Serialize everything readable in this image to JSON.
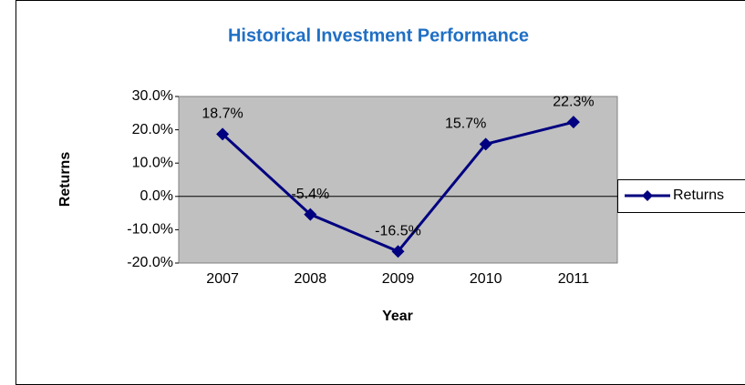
{
  "chart_data": {
    "type": "line",
    "title": "Historical Investment Performance",
    "x_label": "Year",
    "y_label": "Returns",
    "categories": [
      "2007",
      "2008",
      "2009",
      "2010",
      "2011"
    ],
    "series": [
      {
        "name": "Returns",
        "color": "#000080",
        "marker": "diamond",
        "values": [
          18.7,
          -5.4,
          -16.5,
          15.7,
          22.3
        ],
        "value_labels": [
          "18.7%",
          "-5.4%",
          "-16.5%",
          "15.7%",
          "22.3%"
        ]
      }
    ],
    "ylim": [
      -20,
      30
    ],
    "yticks": [
      {
        "value": -20,
        "label": "-20.0%"
      },
      {
        "value": -10,
        "label": "-10.0%"
      },
      {
        "value": 0,
        "label": "0.0%"
      },
      {
        "value": 10,
        "label": "10.0%"
      },
      {
        "value": 20,
        "label": "20.0%"
      },
      {
        "value": 30,
        "label": "30.0%"
      }
    ],
    "legend_position": "right"
  }
}
